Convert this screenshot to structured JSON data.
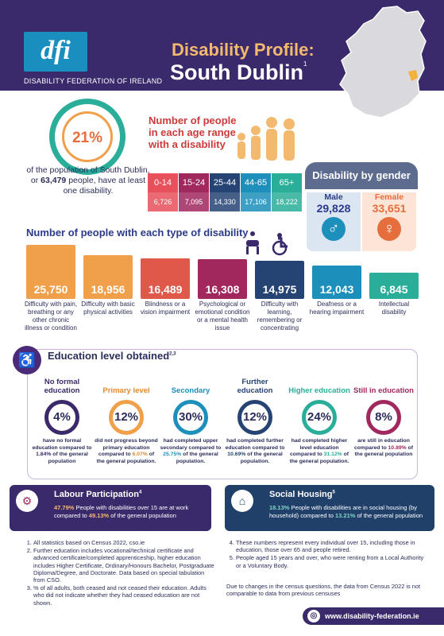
{
  "header": {
    "org": "DISABILITY FEDERATION OF IRELAND",
    "logo": "dfi",
    "title": "Disability Profile:",
    "place": "South Dublin",
    "place_sup": "1"
  },
  "summary": {
    "pct": "21%",
    "text_a": "of the population of South Dublin, or ",
    "count": "63,479",
    "text_b": " people, have at least one disability."
  },
  "age": {
    "title": "Number of people in each age range with a disability",
    "bands": [
      {
        "label": "0-14",
        "value": "6,726",
        "color": "#e8505b"
      },
      {
        "label": "15-24",
        "value": "7,095",
        "color": "#a0285d"
      },
      {
        "label": "25-44",
        "value": "14,330",
        "color": "#254474"
      },
      {
        "label": "44-65",
        "value": "17,106",
        "color": "#1c8fba"
      },
      {
        "label": "65+",
        "value": "18,222",
        "color": "#2aae9a"
      }
    ]
  },
  "gender": {
    "title": "Disability by gender",
    "male_label": "Male",
    "male_value": "29,828",
    "female_label": "Female",
    "female_value": "33,651",
    "male_icon": "male-symbol-icon",
    "female_icon": "female-symbol-icon"
  },
  "types": {
    "title": "Number of people with each type of disability",
    "items": [
      {
        "value": "25,750",
        "label": "Difficulty with pain, breathing or any other chronic illness or condition",
        "num": 25750,
        "color": "#f0a04b"
      },
      {
        "value": "18,956",
        "label": "Difficulty with basic physical activities",
        "num": 18956,
        "color": "#f0a04b"
      },
      {
        "value": "16,489",
        "label": "Blindness or a vision impairment",
        "num": 16489,
        "color": "#e0584a"
      },
      {
        "value": "16,308",
        "label": "Psychological or emotional condition or a mental health issue",
        "num": 16308,
        "color": "#a0285d"
      },
      {
        "value": "14,975",
        "label": "Difficulty with learning, remembering or concentrating",
        "num": 14975,
        "color": "#254474"
      },
      {
        "value": "12,043",
        "label": "Deafness or a hearing impairment",
        "num": 12043,
        "color": "#1c8fba"
      },
      {
        "value": "6,845",
        "label": "Intellectual disability",
        "num": 6845,
        "color": "#2aae9a"
      }
    ]
  },
  "education": {
    "title": "Education level obtained",
    "sup": "2,3",
    "items": [
      {
        "head": "No formal education",
        "pct": "4%",
        "t1": "have no formal education compared to ",
        "t2": "1.84%",
        "t3": " of the general population",
        "color": "#3b2a6b",
        "hc": "#3b2a6b"
      },
      {
        "head": "Primary level",
        "pct": "12%",
        "t1": "did not progress beyond primary education compared to ",
        "t2": "6.07%",
        "t3": " of the general population.",
        "color": "#f0a04b",
        "hc": "#e08a2e"
      },
      {
        "head": "Secondary",
        "pct": "30%",
        "t1": "had completed upper secondary compared to ",
        "t2": "25.75%",
        "t3": " of the general population.",
        "color": "#1c8fba",
        "hc": "#1c8fba"
      },
      {
        "head": "Further education",
        "pct": "12%",
        "t1": "had completed further education compared to ",
        "t2": "10.69%",
        "t3": " of the general population.",
        "color": "#254474",
        "hc": "#254474"
      },
      {
        "head": "Higher education",
        "pct": "24%",
        "t1": "had completed higher level education compared to ",
        "t2": "31.12%",
        "t3": " of the general population.",
        "color": "#2aae9a",
        "hc": "#2aae9a"
      },
      {
        "head": "Still in education",
        "pct": "8%",
        "t1": "are still in education compared to ",
        "t2": "10.89%",
        "t3": " of the general population",
        "color": "#a0285d",
        "hc": "#a0285d"
      }
    ]
  },
  "labour": {
    "title": "Labour Participation",
    "sup": "4",
    "pct": "47.79%",
    "text": " People with disabilities over 15 are at work compared to ",
    "pct2": "49.13%",
    "text2": " of the general population"
  },
  "housing": {
    "title": "Social Housing",
    "sup": "5",
    "pct": "18.13%",
    "text": " People with disabilities are in social housing (by household) compared to ",
    "pct2": "13.21%",
    "text2": " of the general population"
  },
  "notes_left": [
    "All statistics based on Census 2022, cso.ie",
    "Further education includes vocational/technical certificate and advanced certificate/completed apprenticeship, higher education includes Higher Certificate, Ordinary/Honours Bachelor, Postgraduate Diploma/Degree, and Doctorate. Data based on special tabulation from CSO.",
    "% of all adults, both ceased and not ceased their education. Adults who did not indicate whether they had ceased education are not shown."
  ],
  "notes_right": [
    "These numbers represent every individual over 15, including those in education, those over 65 and people retired.",
    "People aged 15 years and over, who were renting from a Local Authority or a Voluntary Body."
  ],
  "census_note": "Due to changes in the census questions, the data from Census 2022 is not comparable to data from previous censuses",
  "website": "www.disability-federation.ie"
}
